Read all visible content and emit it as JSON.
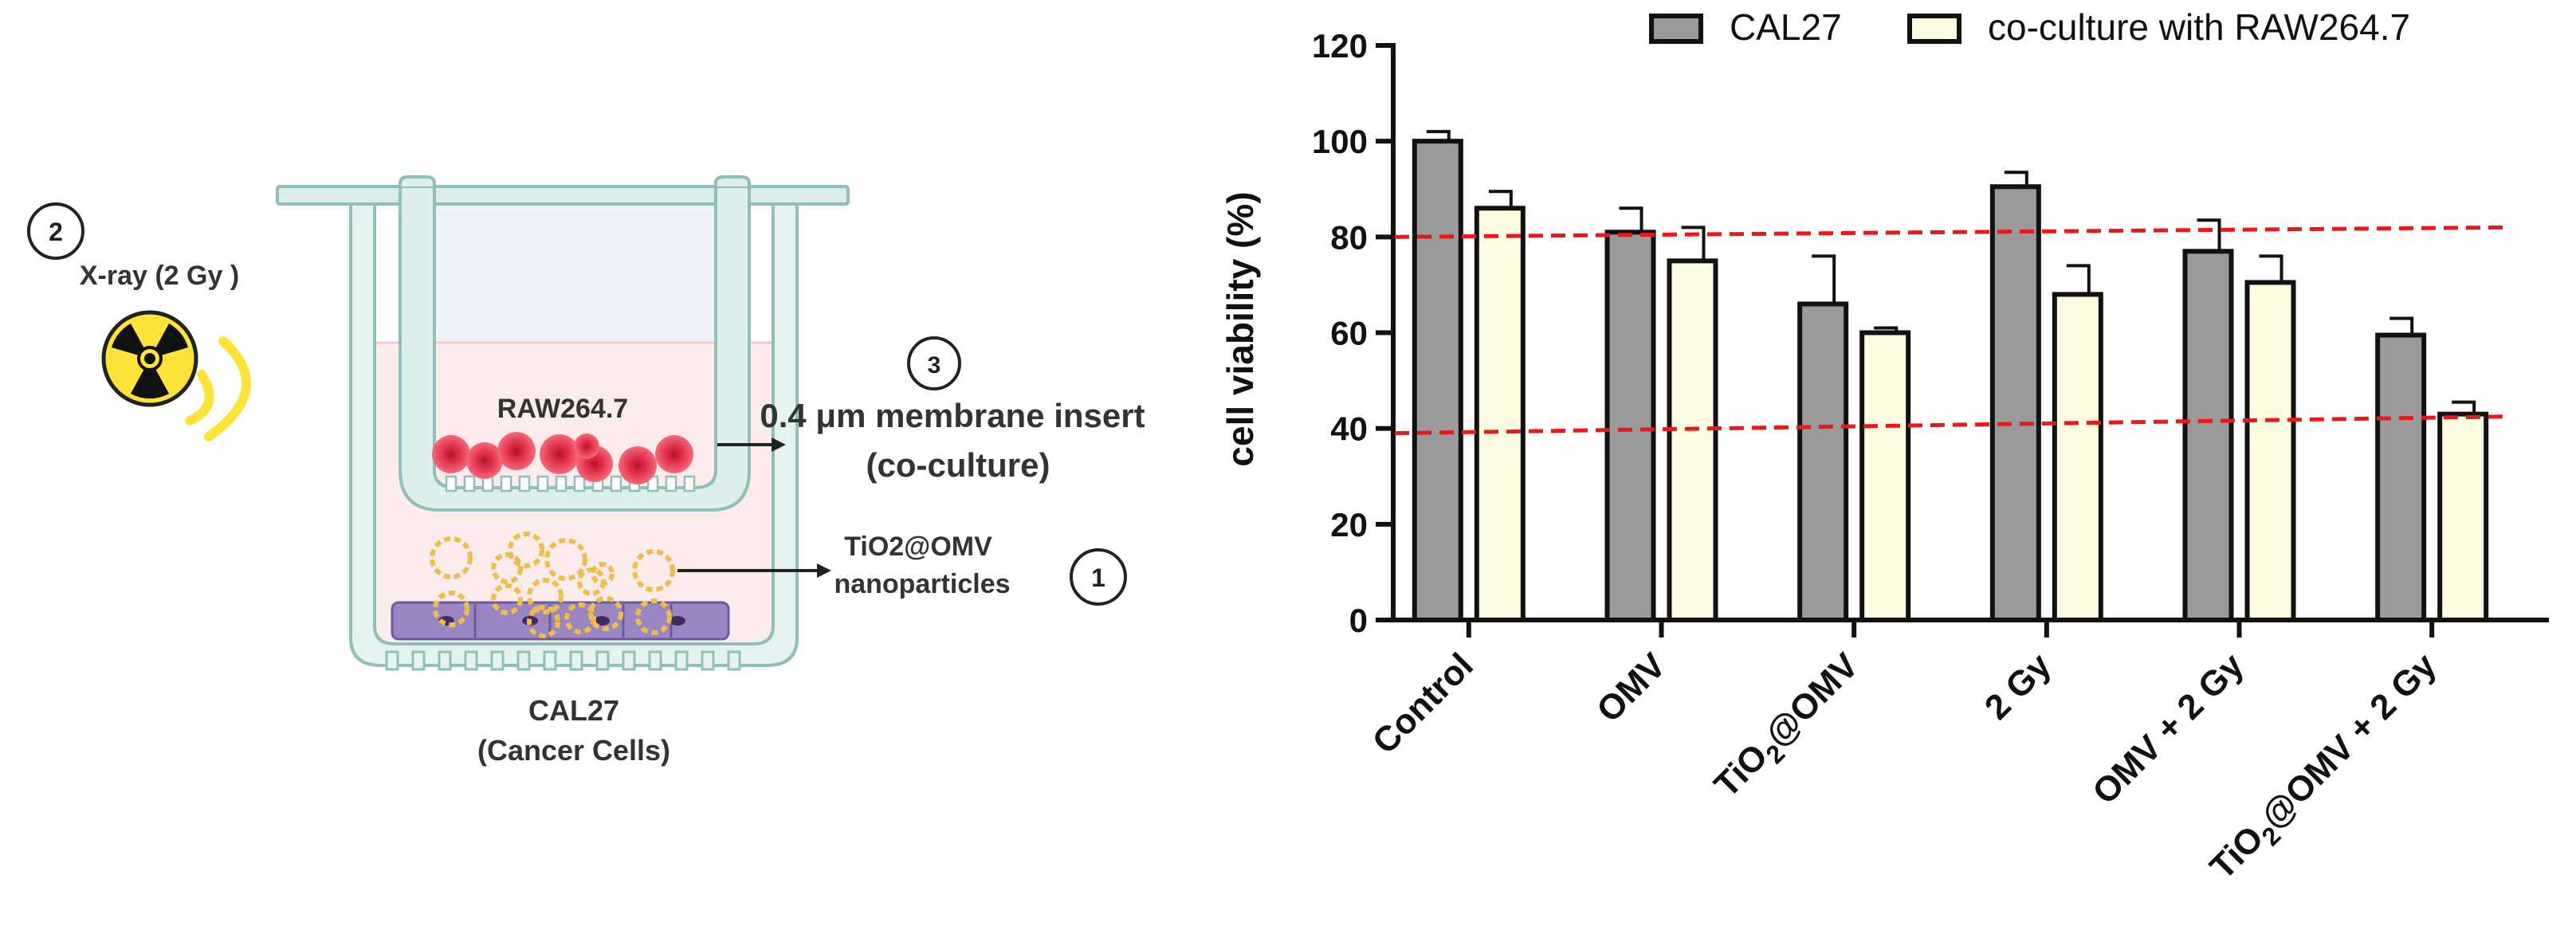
{
  "colors": {
    "cal27": "#9a9a9a",
    "coculture": "#fffde1",
    "refline": "#e8191b",
    "insert_fill": "#fce9e9",
    "insert_upper": "#eef1f7",
    "well_wall": "#a9d0cb",
    "well_wall_fill": "#e9f4f2",
    "raw_cell": "#e8334a",
    "raw_cell_core": "#c41d32",
    "nanoparticle": "#efbe4a",
    "cal27_layer": "#9b86c4",
    "radiation_yellow": "#ffe23a",
    "radiation_arc": "#ffe23a",
    "arrow": "#222222"
  },
  "schematic": {
    "step2_number": "2",
    "xray_label": "X-ray (2 Gy )",
    "raw_label": "RAW264.7",
    "step3_number": "3",
    "membrane_label_line1": "0.4 μm membrane insert",
    "membrane_label_line2": "(co-culture)",
    "nano_label_line1": "TiO2@OMV",
    "nano_label_line2": "nanoparticles",
    "step1_number": "1",
    "cal27_label_line1": "CAL27",
    "cal27_label_line2": "(Cancer Cells)"
  },
  "chart_data": {
    "type": "bar",
    "ylabel": "cell viability (%)",
    "ylim": [
      0,
      120
    ],
    "yticks": [
      0,
      20,
      40,
      60,
      80,
      100,
      120
    ],
    "grid": false,
    "legend_position": "top",
    "categories": [
      {
        "label": "Control",
        "main": "Control",
        "sub": "",
        "tail": ""
      },
      {
        "label": "OMV",
        "main": "OMV",
        "sub": "",
        "tail": ""
      },
      {
        "label": "TiO2@OMV",
        "main": "TiO",
        "sub": "2",
        "tail": "@OMV"
      },
      {
        "label": "2 Gy",
        "main": "2 Gy",
        "sub": "",
        "tail": ""
      },
      {
        "label": "OMV + 2 Gy",
        "main": "OMV + 2 Gy",
        "sub": "",
        "tail": ""
      },
      {
        "label": "TiO2@OMV + 2 Gy",
        "main": "TiO",
        "sub": "2",
        "tail": "@OMV + 2 Gy"
      }
    ],
    "series": [
      {
        "name": "CAL27",
        "values": [
          100,
          81,
          66,
          90.5,
          77,
          59.5
        ],
        "errors": [
          2,
          5,
          10,
          3,
          6.5,
          3.5
        ]
      },
      {
        "name": "co-culture with RAW264.7",
        "values": [
          86,
          75,
          60,
          68,
          70.5,
          43
        ],
        "errors": [
          3.5,
          7,
          1,
          6,
          5.5,
          2.5
        ]
      }
    ],
    "reference_lines": [
      {
        "name": "upper-threshold",
        "y_start": 80,
        "y_end": 82
      },
      {
        "name": "lower-threshold",
        "y_start": 39,
        "y_end": 42.5
      }
    ]
  }
}
